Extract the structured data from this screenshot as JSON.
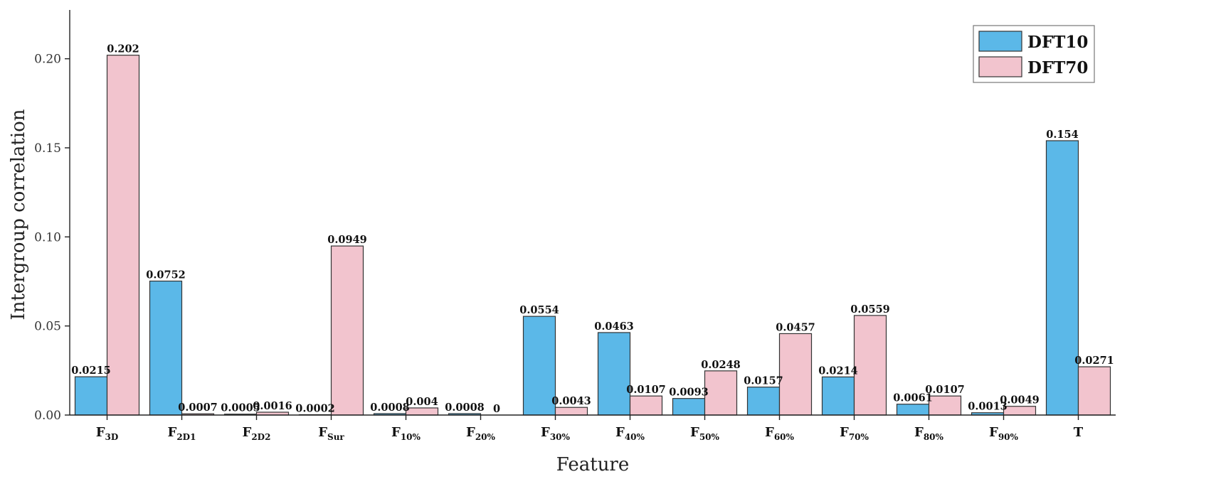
{
  "chart_data": {
    "type": "bar",
    "xlabel": "Feature",
    "ylabel": "Intergroup correlation",
    "ylim": [
      0,
      0.225
    ],
    "yticks": [
      "0.00",
      "0.05",
      "0.10",
      "0.15",
      "0.20"
    ],
    "legend_position": "top-right",
    "categories": [
      {
        "main": "F",
        "sub": "3D"
      },
      {
        "main": "F",
        "sub": "2D1"
      },
      {
        "main": "F",
        "sub": "2D2"
      },
      {
        "main": "F",
        "sub": "Sur"
      },
      {
        "main": "F",
        "sub": "10%"
      },
      {
        "main": "F",
        "sub": "20%"
      },
      {
        "main": "F",
        "sub": "30%"
      },
      {
        "main": "F",
        "sub": "40%"
      },
      {
        "main": "F",
        "sub": "50%"
      },
      {
        "main": "F",
        "sub": "60%"
      },
      {
        "main": "F",
        "sub": "70%"
      },
      {
        "main": "F",
        "sub": "80%"
      },
      {
        "main": "F",
        "sub": "90%"
      },
      {
        "main": "T",
        "sub": ""
      }
    ],
    "series": [
      {
        "name": "DFT10",
        "color": "#5bb8e8",
        "values": [
          0.0215,
          0.0752,
          0.0005,
          0.0002,
          0.0008,
          0.0008,
          0.0554,
          0.0463,
          0.0093,
          0.0157,
          0.0214,
          0.0061,
          0.0013,
          0.154
        ],
        "labels": [
          "0.0215",
          "0.0752",
          "0.0005",
          "0.0002",
          "0.0008",
          "0.0008",
          "0.0554",
          "0.0463",
          "0.0093",
          "0.0157",
          "0.0214",
          "0.0061",
          "0.0013",
          "0.154"
        ]
      },
      {
        "name": "DFT70",
        "color": "#f2c4ce",
        "values": [
          0.202,
          0.0007,
          0.0016,
          0.0949,
          0.004,
          0,
          0.0043,
          0.0107,
          0.0248,
          0.0457,
          0.0559,
          0.0107,
          0.0049,
          0.0271
        ],
        "labels": [
          "0.202",
          "0.0007",
          "0.0016",
          "0.0949",
          "0.004",
          "0",
          "0.0043",
          "0.0107",
          "0.0248",
          "0.0457",
          "0.0559",
          "0.0107",
          "0.0049",
          "0.0271"
        ]
      }
    ]
  }
}
